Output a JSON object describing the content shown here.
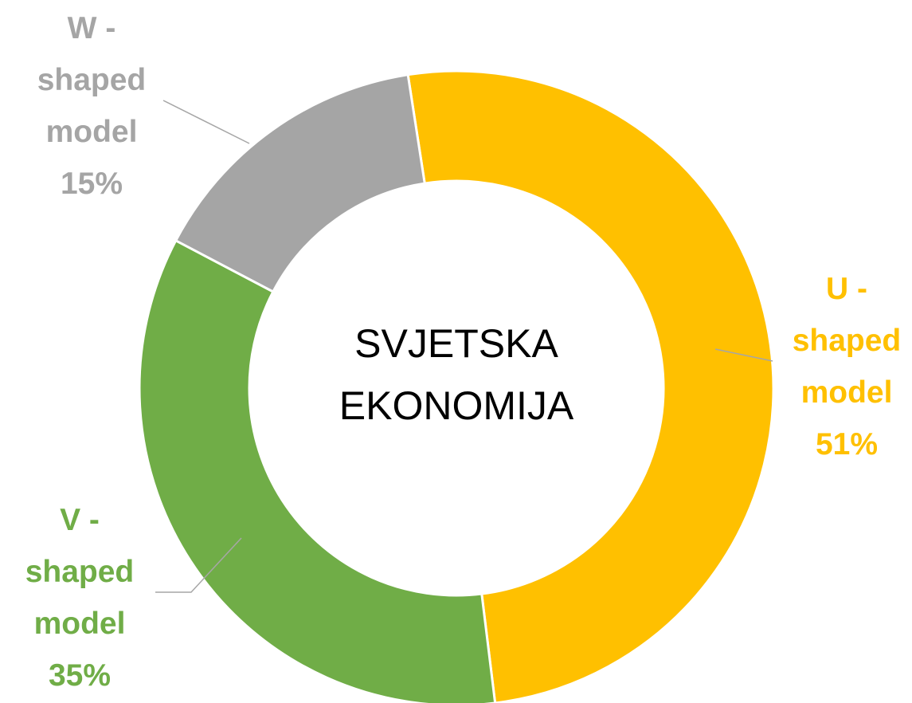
{
  "chart_data": {
    "type": "donut",
    "center_label": "SVJETSKA EKONOMIJA",
    "categories": [
      "U - shaped model",
      "V - shaped model",
      "W - shaped model"
    ],
    "values": [
      51,
      35,
      15
    ],
    "value_labels": [
      "51%",
      "35%",
      "15%"
    ],
    "colors": [
      "#FFC000",
      "#70AD47",
      "#A5A5A5"
    ]
  }
}
